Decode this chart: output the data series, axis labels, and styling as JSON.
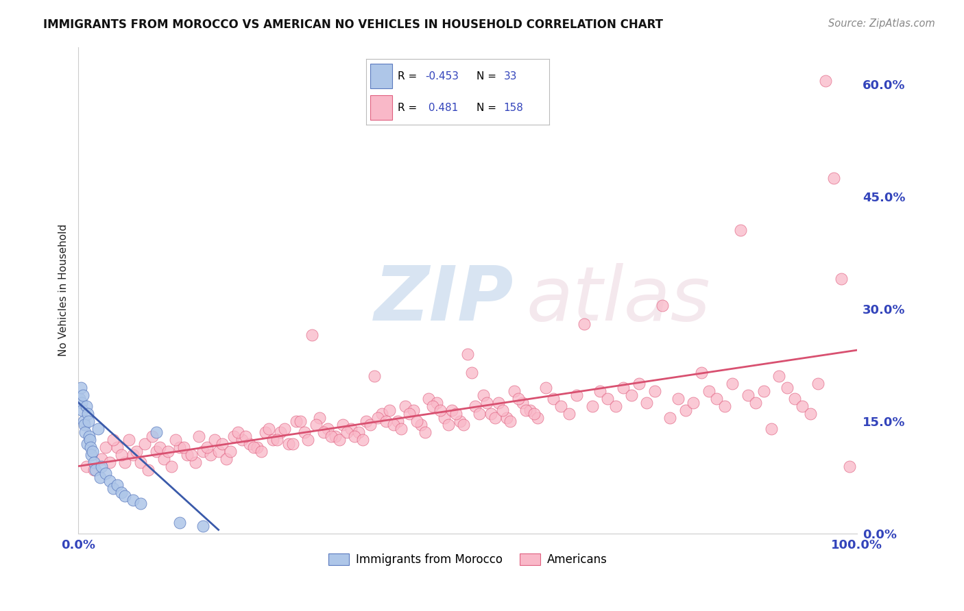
{
  "title": "IMMIGRANTS FROM MOROCCO VS AMERICAN NO VEHICLES IN HOUSEHOLD CORRELATION CHART",
  "source": "Source: ZipAtlas.com",
  "ylabel": "No Vehicles in Household",
  "right_ytick_labels": [
    "0.0%",
    "15.0%",
    "30.0%",
    "45.0%",
    "60.0%"
  ],
  "right_ytick_values": [
    0.0,
    15.0,
    30.0,
    45.0,
    60.0
  ],
  "xlim": [
    0.0,
    100.0
  ],
  "ylim": [
    0.0,
    65.0
  ],
  "blue_color": "#aec6e8",
  "pink_color": "#f9b8c8",
  "blue_edge_color": "#5b7abf",
  "pink_edge_color": "#e06080",
  "blue_line_color": "#3a5aaa",
  "pink_line_color": "#d85070",
  "title_color": "#111111",
  "source_color": "#888888",
  "axis_tick_color": "#3344bb",
  "background_color": "#ffffff",
  "grid_color": "#cccccc",
  "legend_text_color": "#3344bb",
  "legend_border_color": "#bbbbbb",
  "blue_scatter": [
    [
      0.2,
      18.0
    ],
    [
      0.3,
      19.5
    ],
    [
      0.4,
      17.5
    ],
    [
      0.5,
      16.5
    ],
    [
      0.6,
      18.5
    ],
    [
      0.7,
      15.0
    ],
    [
      0.8,
      14.5
    ],
    [
      0.9,
      13.5
    ],
    [
      1.0,
      17.0
    ],
    [
      1.1,
      12.0
    ],
    [
      1.2,
      16.0
    ],
    [
      1.3,
      15.0
    ],
    [
      1.4,
      13.0
    ],
    [
      1.5,
      12.5
    ],
    [
      1.6,
      11.5
    ],
    [
      1.7,
      10.5
    ],
    [
      1.8,
      11.0
    ],
    [
      2.0,
      9.5
    ],
    [
      2.2,
      8.5
    ],
    [
      2.5,
      14.0
    ],
    [
      2.8,
      7.5
    ],
    [
      3.0,
      9.0
    ],
    [
      3.5,
      8.0
    ],
    [
      4.0,
      7.0
    ],
    [
      4.5,
      6.0
    ],
    [
      5.0,
      6.5
    ],
    [
      5.5,
      5.5
    ],
    [
      6.0,
      5.0
    ],
    [
      7.0,
      4.5
    ],
    [
      8.0,
      4.0
    ],
    [
      10.0,
      13.5
    ],
    [
      13.0,
      1.5
    ],
    [
      16.0,
      1.0
    ]
  ],
  "pink_scatter": [
    [
      1.0,
      9.0
    ],
    [
      2.0,
      8.5
    ],
    [
      3.0,
      10.0
    ],
    [
      4.0,
      9.5
    ],
    [
      5.0,
      11.5
    ],
    [
      6.0,
      9.5
    ],
    [
      7.0,
      10.5
    ],
    [
      8.0,
      9.5
    ],
    [
      9.0,
      8.5
    ],
    [
      10.0,
      11.0
    ],
    [
      11.0,
      10.0
    ],
    [
      12.0,
      9.0
    ],
    [
      13.0,
      11.5
    ],
    [
      14.0,
      10.5
    ],
    [
      15.0,
      9.5
    ],
    [
      16.0,
      11.0
    ],
    [
      17.0,
      10.5
    ],
    [
      18.0,
      11.0
    ],
    [
      19.0,
      10.0
    ],
    [
      20.0,
      13.0
    ],
    [
      21.0,
      12.5
    ],
    [
      22.0,
      12.0
    ],
    [
      23.0,
      11.5
    ],
    [
      24.0,
      13.5
    ],
    [
      25.0,
      12.5
    ],
    [
      26.0,
      13.5
    ],
    [
      27.0,
      12.0
    ],
    [
      28.0,
      15.0
    ],
    [
      29.0,
      13.5
    ],
    [
      30.0,
      26.5
    ],
    [
      31.0,
      15.5
    ],
    [
      32.0,
      14.0
    ],
    [
      33.0,
      13.0
    ],
    [
      34.0,
      14.5
    ],
    [
      35.0,
      14.0
    ],
    [
      36.0,
      13.5
    ],
    [
      37.0,
      15.0
    ],
    [
      38.0,
      21.0
    ],
    [
      39.0,
      16.0
    ],
    [
      40.0,
      16.5
    ],
    [
      41.0,
      15.0
    ],
    [
      42.0,
      17.0
    ],
    [
      43.0,
      16.5
    ],
    [
      44.0,
      14.5
    ],
    [
      45.0,
      18.0
    ],
    [
      46.0,
      17.5
    ],
    [
      47.0,
      15.5
    ],
    [
      48.0,
      16.5
    ],
    [
      49.0,
      15.0
    ],
    [
      50.0,
      24.0
    ],
    [
      51.0,
      17.0
    ],
    [
      52.0,
      18.5
    ],
    [
      53.0,
      16.0
    ],
    [
      54.0,
      17.5
    ],
    [
      55.0,
      15.5
    ],
    [
      56.0,
      19.0
    ],
    [
      57.0,
      17.5
    ],
    [
      58.0,
      16.5
    ],
    [
      59.0,
      15.5
    ],
    [
      60.0,
      19.5
    ],
    [
      61.0,
      18.0
    ],
    [
      62.0,
      17.0
    ],
    [
      63.0,
      16.0
    ],
    [
      64.0,
      18.5
    ],
    [
      65.0,
      28.0
    ],
    [
      66.0,
      17.0
    ],
    [
      67.0,
      19.0
    ],
    [
      68.0,
      18.0
    ],
    [
      69.0,
      17.0
    ],
    [
      70.0,
      19.5
    ],
    [
      71.0,
      18.5
    ],
    [
      72.0,
      20.0
    ],
    [
      73.0,
      17.5
    ],
    [
      74.0,
      19.0
    ],
    [
      75.0,
      30.5
    ],
    [
      76.0,
      15.5
    ],
    [
      77.0,
      18.0
    ],
    [
      78.0,
      16.5
    ],
    [
      79.0,
      17.5
    ],
    [
      80.0,
      21.5
    ],
    [
      81.0,
      19.0
    ],
    [
      82.0,
      18.0
    ],
    [
      83.0,
      17.0
    ],
    [
      84.0,
      20.0
    ],
    [
      85.0,
      40.5
    ],
    [
      86.0,
      18.5
    ],
    [
      87.0,
      17.5
    ],
    [
      88.0,
      19.0
    ],
    [
      89.0,
      14.0
    ],
    [
      90.0,
      21.0
    ],
    [
      91.0,
      19.5
    ],
    [
      92.0,
      18.0
    ],
    [
      93.0,
      17.0
    ],
    [
      94.0,
      16.0
    ],
    [
      95.0,
      20.0
    ],
    [
      96.0,
      60.5
    ],
    [
      97.0,
      47.5
    ],
    [
      98.0,
      34.0
    ],
    [
      99.0,
      9.0
    ],
    [
      3.5,
      11.5
    ],
    [
      4.5,
      12.5
    ],
    [
      5.5,
      10.5
    ],
    [
      6.5,
      12.5
    ],
    [
      7.5,
      11.0
    ],
    [
      8.5,
      12.0
    ],
    [
      9.5,
      13.0
    ],
    [
      10.5,
      11.5
    ],
    [
      11.5,
      11.0
    ],
    [
      12.5,
      12.5
    ],
    [
      13.5,
      11.5
    ],
    [
      14.5,
      10.5
    ],
    [
      15.5,
      13.0
    ],
    [
      16.5,
      11.5
    ],
    [
      17.5,
      12.5
    ],
    [
      18.5,
      12.0
    ],
    [
      19.5,
      11.0
    ],
    [
      20.5,
      13.5
    ],
    [
      21.5,
      13.0
    ],
    [
      22.5,
      11.5
    ],
    [
      23.5,
      11.0
    ],
    [
      24.5,
      14.0
    ],
    [
      25.5,
      12.5
    ],
    [
      26.5,
      14.0
    ],
    [
      27.5,
      12.0
    ],
    [
      28.5,
      15.0
    ],
    [
      29.5,
      12.5
    ],
    [
      30.5,
      14.5
    ],
    [
      31.5,
      13.5
    ],
    [
      32.5,
      13.0
    ],
    [
      33.5,
      12.5
    ],
    [
      34.5,
      13.5
    ],
    [
      35.5,
      13.0
    ],
    [
      36.5,
      12.5
    ],
    [
      37.5,
      14.5
    ],
    [
      38.5,
      15.5
    ],
    [
      39.5,
      15.0
    ],
    [
      40.5,
      14.5
    ],
    [
      41.5,
      14.0
    ],
    [
      42.5,
      16.0
    ],
    [
      43.5,
      15.0
    ],
    [
      44.5,
      13.5
    ],
    [
      45.5,
      17.0
    ],
    [
      46.5,
      16.5
    ],
    [
      47.5,
      14.5
    ],
    [
      48.5,
      16.0
    ],
    [
      49.5,
      14.5
    ],
    [
      50.5,
      21.5
    ],
    [
      51.5,
      16.0
    ],
    [
      52.5,
      17.5
    ],
    [
      53.5,
      15.5
    ],
    [
      54.5,
      16.5
    ],
    [
      55.5,
      15.0
    ],
    [
      56.5,
      18.0
    ],
    [
      57.5,
      16.5
    ],
    [
      58.5,
      16.0
    ]
  ],
  "blue_trendline_x": [
    0.0,
    18.0
  ],
  "blue_trendline_y": [
    17.5,
    0.5
  ],
  "pink_trendline_x": [
    0.0,
    100.0
  ],
  "pink_trendline_y": [
    9.0,
    24.5
  ]
}
